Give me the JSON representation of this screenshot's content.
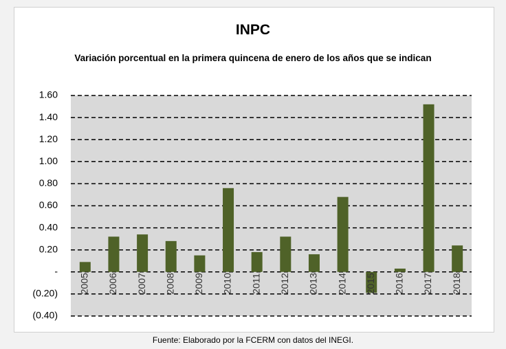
{
  "chart_data": {
    "type": "bar",
    "title": "INPC",
    "subtitle": "Variación porcentual en la primera quincena de enero de los años que se indican",
    "categories": [
      "2005",
      "2006",
      "2007",
      "2008",
      "2009",
      "2010",
      "2011",
      "2012",
      "2013",
      "2014",
      "2015",
      "2016",
      "2017",
      "2018"
    ],
    "values": [
      0.09,
      0.32,
      0.34,
      0.28,
      0.15,
      0.76,
      0.18,
      0.32,
      0.16,
      0.68,
      -0.19,
      0.03,
      1.52,
      0.24
    ],
    "color": "#4f6228",
    "ylim": [
      -0.4,
      1.6
    ],
    "yticks": [
      {
        "value": -0.4,
        "label": "(0.40)"
      },
      {
        "value": -0.2,
        "label": "(0.20)"
      },
      {
        "value": 0,
        "label": "-"
      },
      {
        "value": 0.2,
        "label": "0.20"
      },
      {
        "value": 0.4,
        "label": "0.40"
      },
      {
        "value": 0.6,
        "label": "0.60"
      },
      {
        "value": 0.8,
        "label": "0.80"
      },
      {
        "value": 1.0,
        "label": "1.00"
      },
      {
        "value": 1.2,
        "label": "1.20"
      },
      {
        "value": 1.4,
        "label": "1.40"
      },
      {
        "value": 1.6,
        "label": "1.60"
      }
    ],
    "grid": true,
    "source": "Fuente: Elaborado por la FCERM con datos del INEGI."
  }
}
